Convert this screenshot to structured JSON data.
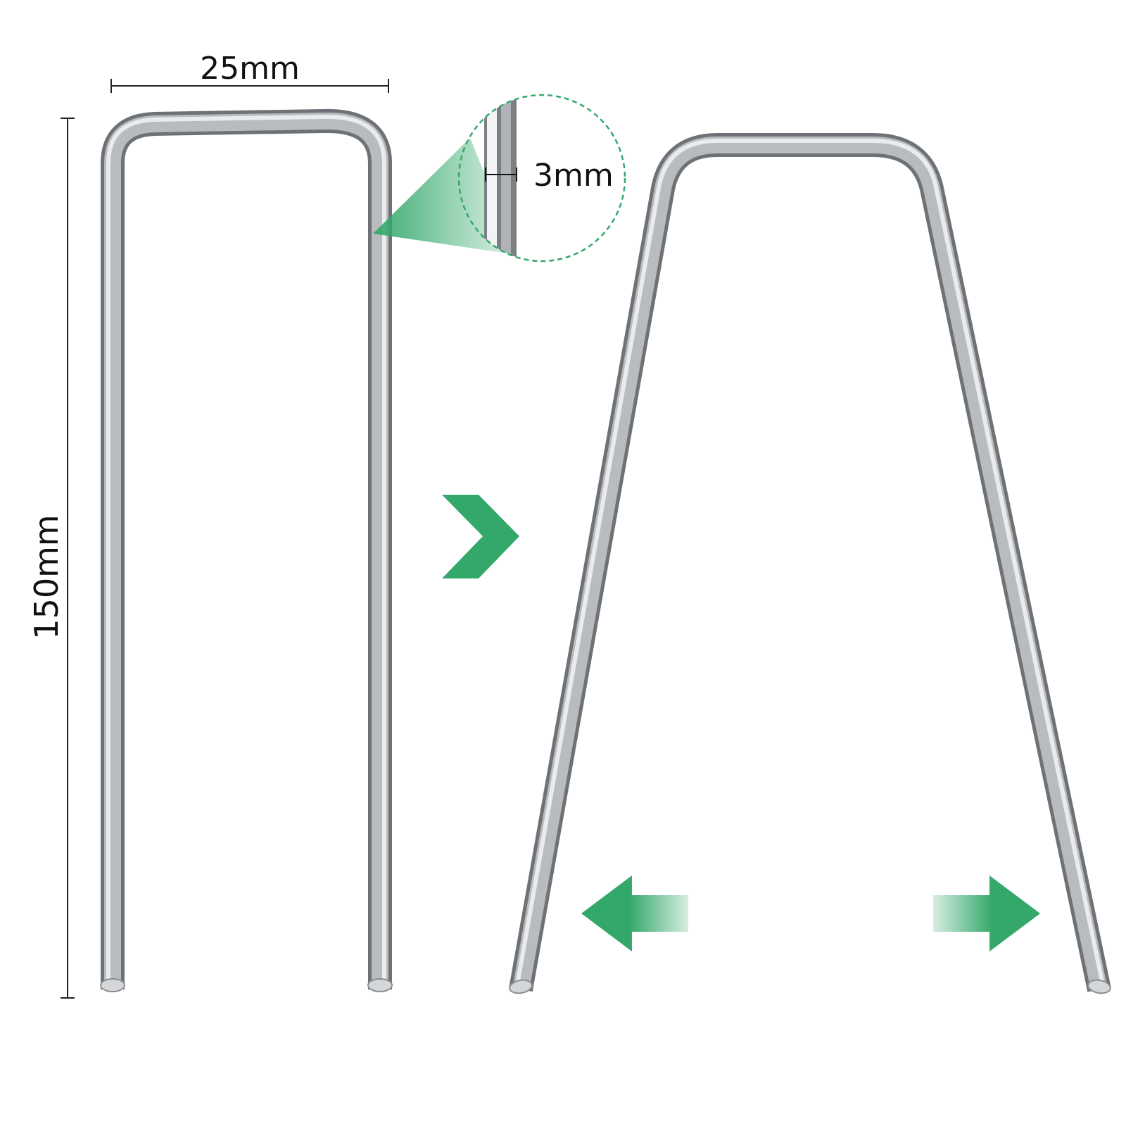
{
  "dimensions": {
    "width": {
      "label": "25mm"
    },
    "height": {
      "label": "150mm"
    },
    "wire_diameter": {
      "label": "3mm"
    }
  },
  "colors": {
    "accent_green": "#34a86b",
    "metal_dark": "#7b7f83",
    "metal_light": "#e6e8ea",
    "dimension_line": "#222222"
  },
  "icons": {
    "transform_arrow": "chevron-right-icon",
    "spread_left": "arrow-left-icon",
    "spread_right": "arrow-right-icon"
  }
}
